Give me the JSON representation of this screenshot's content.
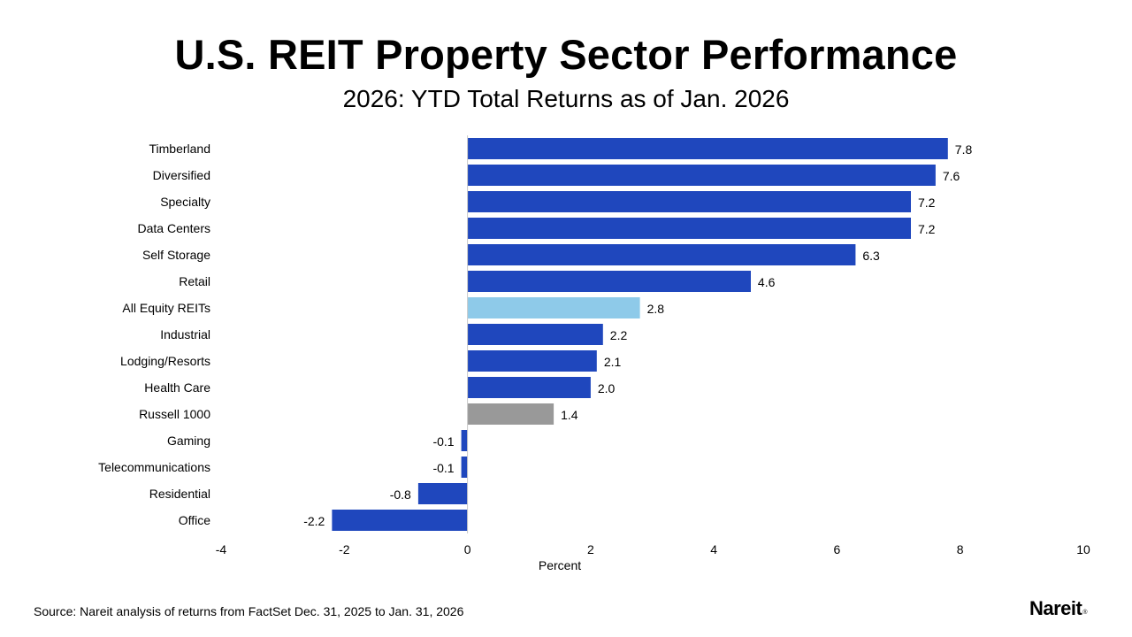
{
  "header": {
    "title": "U.S. REIT Property Sector Performance",
    "subtitle": "2026: YTD Total Returns as of Jan. 2026"
  },
  "footer": {
    "source": "Source: Nareit analysis of returns from FactSet Dec. 31, 2025 to Jan. 31, 2026",
    "logo_text": "Nareit",
    "logo_mark": "®"
  },
  "chart_data": {
    "type": "bar",
    "orientation": "horizontal",
    "title": "U.S. REIT Property Sector Performance",
    "subtitle": "2026: YTD Total Returns as of Jan. 2026",
    "xlabel": "Percent",
    "ylabel": "",
    "xlim": [
      -4,
      10
    ],
    "xticks": [
      -4,
      -2,
      0,
      2,
      4,
      6,
      8,
      10
    ],
    "grid": false,
    "legend": "none",
    "categories": [
      "Timberland",
      "Diversified",
      "Specialty",
      "Data Centers",
      "Self Storage",
      "Retail",
      "All Equity REITs",
      "Industrial",
      "Lodging/Resorts",
      "Health Care",
      "Russell 1000",
      "Gaming",
      "Telecommunications",
      "Residential",
      "Office"
    ],
    "values": [
      7.8,
      7.6,
      7.2,
      7.2,
      6.3,
      4.6,
      2.8,
      2.2,
      2.1,
      2.0,
      1.4,
      -0.1,
      -0.1,
      -0.8,
      -2.2
    ],
    "data_labels": [
      "7.8",
      "7.6",
      "7.2",
      "7.2",
      "6.3",
      "4.6",
      "2.8",
      "2.2",
      "2.1",
      "2.0",
      "1.4",
      "-0.1",
      "-0.1",
      "-0.8",
      "-2.2"
    ],
    "colors": {
      "sector": "#1f47bd",
      "all_equity_reits": "#8ecae9",
      "russell_1000": "#999999",
      "axis_line": "#c8c8c8"
    },
    "bar_colors": [
      "sector",
      "sector",
      "sector",
      "sector",
      "sector",
      "sector",
      "all_equity_reits",
      "sector",
      "sector",
      "sector",
      "russell_1000",
      "sector",
      "sector",
      "sector",
      "sector"
    ]
  }
}
